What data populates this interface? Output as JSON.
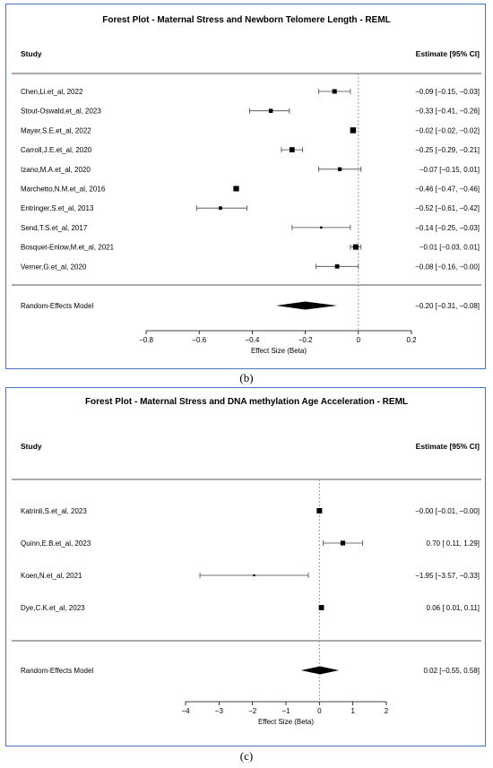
{
  "charts": [
    {
      "title": "Forest Plot - Maternal Stress and Newborn Telomere Length - REML",
      "caption": "(b)",
      "header_study": "Study",
      "header_estimate": "Estimate [95% CI]",
      "xlabel": "Effect Size (Beta)",
      "xlim": [
        -0.8,
        0.2
      ],
      "xticks": [
        "−0.8",
        "−0.6",
        "−0.4",
        "−0.2",
        "0",
        "0.2"
      ],
      "summary": {
        "label": "Random-Effects Model",
        "est": -0.2,
        "lo": -0.31,
        "hi": -0.08,
        "text": "−0.20 [−0.31, −0.08]"
      }
    },
    {
      "title": "Forest Plot - Maternal Stress and DNA methylation Age Acceleration - REML",
      "caption": "(c)",
      "header_study": "Study",
      "header_estimate": "Estimate [95% CI]",
      "xlabel": "Effect Size (Beta)",
      "xlim": [
        -4,
        2
      ],
      "xticks": [
        "−4",
        "−3",
        "−2",
        "−1",
        "0",
        "1",
        "2"
      ],
      "summary": {
        "label": "Random-Effects Model",
        "est": 0.02,
        "lo": -0.55,
        "hi": 0.58,
        "text": "0.02 [−0.55,  0.58]"
      }
    }
  ],
  "chart_data": [
    {
      "type": "forest",
      "studies": [
        {
          "name": "Chen,Li.et_al, 2022",
          "est": -0.09,
          "lo": -0.15,
          "hi": -0.03,
          "weight": 0.7,
          "text": "−0.09 [−0.15, −0.03]"
        },
        {
          "name": "Stout-Oswald,et_al, 2023",
          "est": -0.33,
          "lo": -0.41,
          "hi": -0.26,
          "weight": 0.6,
          "text": "−0.33 [−0.41, −0.26]"
        },
        {
          "name": "Mayer,S.E.et_al, 2022",
          "est": -0.02,
          "lo": -0.02,
          "hi": -0.02,
          "weight": 1.0,
          "text": "−0.02 [−0.02, −0.02]"
        },
        {
          "name": "Carroll,J.E.et_al, 2020",
          "est": -0.25,
          "lo": -0.29,
          "hi": -0.21,
          "weight": 0.85,
          "text": "−0.25 [−0.29, −0.21]"
        },
        {
          "name": "Izano,M.A.et_al, 2020",
          "est": -0.07,
          "lo": -0.15,
          "hi": 0.01,
          "weight": 0.55,
          "text": "−0.07 [−0.15,  0.01]"
        },
        {
          "name": "Marchetto,N.M.et_al, 2016",
          "est": -0.46,
          "lo": -0.47,
          "hi": -0.46,
          "weight": 0.9,
          "text": "−0.46 [−0.47, −0.46]"
        },
        {
          "name": "Entringer,S.et_al, 2013",
          "est": -0.52,
          "lo": -0.61,
          "hi": -0.42,
          "weight": 0.45,
          "text": "−0.52 [−0.61, −0.42]"
        },
        {
          "name": "Send,T.S.et_al, 2017",
          "est": -0.14,
          "lo": -0.25,
          "hi": -0.03,
          "weight": 0.2,
          "text": "−0.14 [−0.25, −0.03]"
        },
        {
          "name": "Bosquet-Enlow,M.et_al, 2021",
          "est": -0.01,
          "lo": -0.03,
          "hi": 0.01,
          "weight": 0.9,
          "text": "−0.01 [−0.03,  0.01]"
        },
        {
          "name": "Verner,G.et_al, 2020",
          "est": -0.08,
          "lo": -0.16,
          "hi": -0.0,
          "weight": 0.65,
          "text": "−0.08 [−0.16, −0.00]"
        }
      ],
      "summary": {
        "est": -0.2,
        "lo": -0.31,
        "hi": -0.08
      },
      "xlim": [
        -0.8,
        0.2
      ],
      "reference_line": 0
    },
    {
      "type": "forest",
      "studies": [
        {
          "name": "Katrinli,S.et_al, 2023",
          "est": -0.0,
          "lo": -0.01,
          "hi": -0.0,
          "weight": 0.9,
          "text": "−0.00 [−0.01, −0.00]"
        },
        {
          "name": "Quinn,E.B.et_al, 2023",
          "est": 0.7,
          "lo": 0.11,
          "hi": 1.29,
          "weight": 0.75,
          "text": "0.70 [ 0.11,  1.29]"
        },
        {
          "name": "Koen,N.et_al, 2021",
          "est": -1.95,
          "lo": -3.57,
          "hi": -0.33,
          "weight": 0.15,
          "text": "−1.95 [−3.57, −0.33]"
        },
        {
          "name": "Dye,C.K.et_al, 2023",
          "est": 0.06,
          "lo": 0.01,
          "hi": 0.11,
          "weight": 0.85,
          "text": "0.06 [ 0.01,  0.11]"
        }
      ],
      "summary": {
        "est": 0.02,
        "lo": -0.55,
        "hi": 0.58
      },
      "xlim": [
        -4,
        2
      ],
      "reference_line": 0
    }
  ]
}
